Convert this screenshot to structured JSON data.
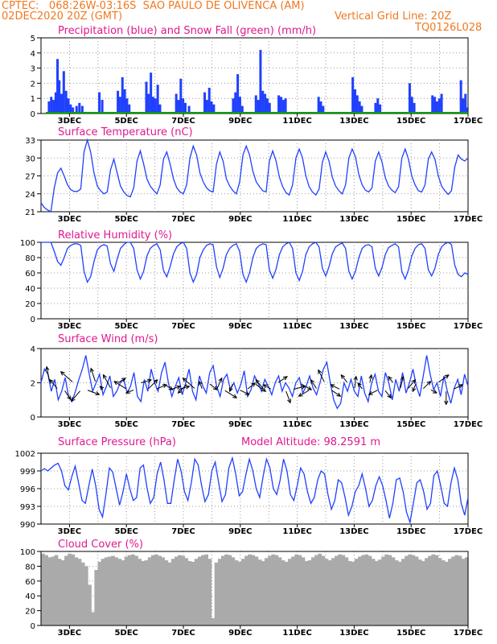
{
  "header": {
    "line1_left": "CPTEC:   068:26W-03:16S  SAO PAULO DE OLIVENCA (AM)",
    "line2_left": "02DEC2020 20Z (GMT)",
    "line2_right": "Vertical Grid Line: 20Z",
    "line3_right": "TQ0126L028"
  },
  "colors": {
    "header": "#f07820",
    "panel_title": "#e01890",
    "precip": "#2040ff",
    "snow": "#00a000",
    "line": "#2040ff",
    "cloud": "#aaaaaa",
    "grid": "#999999",
    "arrow": "#000000"
  },
  "chart_data": [
    {
      "type": "bar",
      "title": "Precipitation (blue) and Snow Fall (green) (mm/h)",
      "ylim": [
        0,
        5
      ],
      "yticks": [
        "0",
        "1",
        "2",
        "3",
        "4",
        "5"
      ],
      "xticks": [
        "3DEC",
        "5DEC",
        "7DEC",
        "9DEC",
        "11DEC",
        "13DEC",
        "15DEC",
        "17DEC"
      ],
      "x_start": 0.167,
      "x_end": 15.0,
      "series": [
        {
          "name": "Precipitation",
          "color": "#2040ff",
          "points": [
            [
              0.28,
              0.8
            ],
            [
              0.36,
              1.1
            ],
            [
              0.44,
              0.9
            ],
            [
              0.52,
              1.4
            ],
            [
              0.58,
              3.6
            ],
            [
              0.64,
              2.2
            ],
            [
              0.72,
              1.3
            ],
            [
              0.8,
              2.8
            ],
            [
              0.88,
              1.5
            ],
            [
              0.96,
              1.0
            ],
            [
              1.04,
              0.6
            ],
            [
              1.12,
              0.4
            ],
            [
              1.25,
              0.5
            ],
            [
              1.35,
              0.7
            ],
            [
              1.45,
              0.5
            ],
            [
              2.05,
              1.4
            ],
            [
              2.15,
              0.9
            ],
            [
              2.7,
              1.5
            ],
            [
              2.78,
              1.1
            ],
            [
              2.86,
              2.4
            ],
            [
              2.94,
              1.6
            ],
            [
              3.02,
              1.0
            ],
            [
              3.1,
              0.6
            ],
            [
              3.7,
              2.1
            ],
            [
              3.78,
              1.3
            ],
            [
              3.86,
              2.7
            ],
            [
              3.94,
              1.1
            ],
            [
              4.02,
              1.0
            ],
            [
              4.1,
              1.9
            ],
            [
              4.18,
              0.6
            ],
            [
              4.75,
              1.3
            ],
            [
              4.83,
              0.9
            ],
            [
              4.91,
              2.3
            ],
            [
              4.99,
              1.0
            ],
            [
              5.07,
              0.7
            ],
            [
              5.2,
              0.5
            ],
            [
              5.75,
              1.4
            ],
            [
              5.83,
              0.9
            ],
            [
              5.91,
              1.7
            ],
            [
              5.99,
              0.8
            ],
            [
              6.07,
              0.6
            ],
            [
              6.75,
              1.0
            ],
            [
              6.83,
              1.4
            ],
            [
              6.91,
              2.6
            ],
            [
              6.99,
              1.1
            ],
            [
              7.07,
              0.5
            ],
            [
              7.55,
              1.2
            ],
            [
              7.63,
              0.9
            ],
            [
              7.71,
              4.2
            ],
            [
              7.79,
              1.5
            ],
            [
              7.87,
              1.3
            ],
            [
              7.95,
              1.0
            ],
            [
              8.03,
              0.7
            ],
            [
              8.35,
              1.2
            ],
            [
              8.43,
              1.1
            ],
            [
              8.51,
              0.9
            ],
            [
              8.59,
              1.0
            ],
            [
              9.75,
              1.1
            ],
            [
              9.83,
              0.8
            ],
            [
              9.91,
              0.5
            ],
            [
              10.95,
              2.4
            ],
            [
              11.03,
              1.6
            ],
            [
              11.11,
              1.2
            ],
            [
              11.19,
              0.8
            ],
            [
              11.27,
              0.5
            ],
            [
              11.75,
              0.7
            ],
            [
              11.83,
              1.0
            ],
            [
              11.91,
              0.6
            ],
            [
              12.95,
              2.0
            ],
            [
              13.03,
              1.1
            ],
            [
              13.11,
              0.7
            ],
            [
              13.75,
              1.2
            ],
            [
              13.83,
              1.1
            ],
            [
              13.91,
              0.8
            ],
            [
              13.99,
              1.0
            ],
            [
              14.07,
              1.3
            ],
            [
              14.75,
              2.2
            ],
            [
              14.83,
              1.0
            ],
            [
              14.91,
              1.3
            ],
            [
              14.95,
              0.4
            ]
          ]
        },
        {
          "name": "Snow Fall",
          "color": "#00a000",
          "values": [
            0
          ]
        }
      ]
    },
    {
      "type": "line",
      "title": "Surface Temperature (nC)",
      "ylim": [
        21,
        33
      ],
      "yticks": [
        "21",
        "24",
        "27",
        "30",
        "33"
      ],
      "xticks": [
        "3DEC",
        "5DEC",
        "7DEC",
        "9DEC",
        "11DEC",
        "13DEC",
        "15DEC",
        "17DEC"
      ],
      "x_start": 0.0,
      "x_end": 15.0,
      "y": [
        22.5,
        21.7,
        21.3,
        21.0,
        25.0,
        27.5,
        28.3,
        27.0,
        25.5,
        24.7,
        24.4,
        24.4,
        24.8,
        31.0,
        33.0,
        31.0,
        27.5,
        25.3,
        24.5,
        24.0,
        24.3,
        28.0,
        29.8,
        27.5,
        25.3,
        24.3,
        23.7,
        23.5,
        25.0,
        29.5,
        31.2,
        29.0,
        26.5,
        25.3,
        24.6,
        24.0,
        25.5,
        29.8,
        31.0,
        29.0,
        26.5,
        25.0,
        24.3,
        24.0,
        25.5,
        30.0,
        32.0,
        30.5,
        27.5,
        26.0,
        25.0,
        24.5,
        24.3,
        29.0,
        31.0,
        29.5,
        26.5,
        25.3,
        24.5,
        24.0,
        26.0,
        30.5,
        32.0,
        30.5,
        27.8,
        26.0,
        25.2,
        24.5,
        24.3,
        29.5,
        31.2,
        29.5,
        26.8,
        25.2,
        24.2,
        23.8,
        25.5,
        30.0,
        31.5,
        30.0,
        27.0,
        25.2,
        24.3,
        23.8,
        24.8,
        29.3,
        31.0,
        29.5,
        26.8,
        25.3,
        24.5,
        24.0,
        25.5,
        30.0,
        31.5,
        30.2,
        27.2,
        25.5,
        24.6,
        24.3,
        25.0,
        29.5,
        31.0,
        29.3,
        26.7,
        25.3,
        24.6,
        24.2,
        25.2,
        30.0,
        31.5,
        29.8,
        27.0,
        25.5,
        24.5,
        24.3,
        25.5,
        29.8,
        31.0,
        29.8,
        27.0,
        25.3,
        24.5,
        23.9,
        24.5,
        28.5,
        30.5,
        29.8,
        29.5,
        30.0
      ]
    },
    {
      "type": "line",
      "title": "Relative Humidity (%)",
      "ylim": [
        0,
        100
      ],
      "yticks": [
        "0",
        "20",
        "40",
        "60",
        "80",
        "100"
      ],
      "xticks": [
        "3DEC",
        "5DEC",
        "7DEC",
        "9DEC",
        "11DEC",
        "13DEC",
        "15DEC",
        "17DEC"
      ],
      "x_start": 0.0,
      "x_end": 15.0,
      "y": [
        100,
        100,
        100,
        100,
        88,
        75,
        70,
        80,
        92,
        96,
        98,
        98,
        96,
        62,
        48,
        55,
        75,
        90,
        95,
        97,
        95,
        72,
        62,
        78,
        92,
        97,
        100,
        100,
        92,
        64,
        52,
        62,
        82,
        92,
        96,
        98,
        90,
        63,
        55,
        68,
        85,
        94,
        98,
        100,
        92,
        60,
        48,
        58,
        80,
        90,
        96,
        98,
        97,
        68,
        54,
        66,
        84,
        92,
        96,
        98,
        88,
        58,
        48,
        60,
        80,
        92,
        96,
        98,
        97,
        64,
        53,
        65,
        84,
        94,
        98,
        100,
        92,
        60,
        50,
        62,
        84,
        94,
        98,
        100,
        94,
        66,
        56,
        68,
        85,
        94,
        97,
        99,
        92,
        62,
        52,
        62,
        80,
        92,
        96,
        97,
        94,
        66,
        56,
        67,
        84,
        93,
        96,
        98,
        94,
        62,
        52,
        64,
        82,
        92,
        97,
        98,
        92,
        64,
        56,
        66,
        84,
        94,
        98,
        100,
        97,
        70,
        58,
        55,
        60,
        58
      ]
    },
    {
      "type": "line",
      "title": "Surface Wind (m/s)",
      "ylim": [
        0,
        4
      ],
      "yticks": [
        "0",
        "2",
        "4"
      ],
      "xticks": [
        "3DEC",
        "5DEC",
        "7DEC",
        "9DEC",
        "11DEC",
        "13DEC",
        "15DEC",
        "17DEC"
      ],
      "x_start": 0.0,
      "x_end": 15.0,
      "y": [
        2.0,
        2.8,
        2.5,
        1.5,
        2.2,
        1.0,
        1.5,
        2.3,
        1.2,
        0.9,
        1.5,
        2.2,
        2.8,
        3.6,
        2.5,
        1.5,
        2.0,
        2.5,
        1.3,
        1.8,
        2.4,
        1.2,
        1.5,
        2.0,
        2.2,
        1.4,
        1.8,
        2.6,
        1.2,
        0.9,
        2.2,
        1.5,
        2.8,
        2.0,
        1.5,
        2.6,
        3.2,
        2.0,
        1.2,
        1.8,
        2.3,
        1.3,
        2.0,
        2.8,
        1.5,
        1.0,
        2.4,
        1.8,
        1.4,
        2.6,
        3.0,
        1.8,
        1.2,
        2.2,
        2.5,
        1.6,
        2.0,
        1.4,
        1.9,
        2.7,
        1.2,
        1.6,
        2.4,
        2.0,
        1.5,
        2.2,
        1.8,
        1.3,
        2.0,
        2.4,
        1.5,
        2.0,
        1.7,
        1.2,
        2.0,
        2.3,
        1.4,
        1.8,
        2.4,
        1.7,
        1.3,
        2.0,
        2.8,
        3.2,
        2.0,
        1.0,
        0.5,
        0.8,
        2.0,
        1.5,
        2.2,
        1.5,
        1.2,
        2.4,
        1.4,
        0.9,
        2.0,
        2.5,
        1.5,
        1.2,
        2.6,
        2.0,
        1.0,
        2.2,
        1.5,
        2.6,
        1.4,
        2.0,
        2.8,
        1.8,
        1.2,
        2.4,
        3.6,
        2.5,
        1.6,
        2.0,
        1.2,
        2.4,
        1.5,
        0.8,
        1.7,
        2.2,
        1.3,
        2.5,
        1.8
      ]
    },
    {
      "type": "line",
      "title": "Surface Pressure (hPa)",
      "annotation": "Model Altitude: 98.2591  m",
      "ylim": [
        990,
        1002
      ],
      "yticks": [
        "990",
        "993",
        "996",
        "999",
        "1002"
      ],
      "xticks": [
        "3DEC",
        "5DEC",
        "7DEC",
        "9DEC",
        "11DEC",
        "13DEC",
        "15DEC",
        "17DEC"
      ],
      "x_start": 0.0,
      "x_end": 15.0,
      "y": [
        999.0,
        999.4,
        999.0,
        999.5,
        1000.0,
        1000.3,
        999.0,
        996.5,
        995.8,
        998.0,
        999.8,
        997.0,
        994.0,
        993.5,
        996.5,
        999.3,
        996.5,
        992.5,
        991.2,
        995.0,
        999.5,
        998.8,
        996.0,
        993.2,
        995.5,
        998.5,
        996.0,
        994.0,
        994.5,
        999.5,
        1000.0,
        996.2,
        993.5,
        994.5,
        998.5,
        1000.5,
        997.5,
        993.5,
        993.5,
        997.5,
        1001.0,
        999.0,
        995.5,
        994.0,
        997.0,
        1001.0,
        1000.0,
        996.5,
        993.8,
        995.0,
        999.0,
        1000.5,
        997.0,
        993.8,
        995.0,
        999.5,
        1001.2,
        998.5,
        994.8,
        995.5,
        998.5,
        1001.0,
        999.0,
        996.0,
        994.5,
        998.0,
        1001.0,
        999.5,
        996.0,
        995.0,
        997.5,
        1001.0,
        999.0,
        995.0,
        994.0,
        996.5,
        999.5,
        998.5,
        995.5,
        993.5,
        994.5,
        997.5,
        999.0,
        998.5,
        995.0,
        992.5,
        994.0,
        997.5,
        997.0,
        994.5,
        991.5,
        993.0,
        995.5,
        996.5,
        998.5,
        996.0,
        993.0,
        994.0,
        996.5,
        998.0,
        996.5,
        994.0,
        991.0,
        993.5,
        997.5,
        997.8,
        995.5,
        992.0,
        990.3,
        993.5,
        997.0,
        997.5,
        995.5,
        992.5,
        993.5,
        998.2,
        999.0,
        996.5,
        993.5,
        993.0,
        997.0,
        999.5,
        997.5,
        993.5,
        991.5,
        994.5
      ]
    },
    {
      "type": "bar",
      "title": "Cloud Cover (%)",
      "ylim": [
        0,
        100
      ],
      "yticks": [
        "0",
        "20",
        "40",
        "60",
        "80",
        "100"
      ],
      "xticks": [
        "3DEC",
        "5DEC",
        "7DEC",
        "9DEC",
        "11DEC",
        "13DEC",
        "15DEC",
        "17DEC"
      ],
      "x_start": 0.0,
      "x_end": 15.0,
      "values": [
        97,
        95,
        92,
        93,
        95,
        90,
        88,
        94,
        97,
        96,
        92,
        90,
        85,
        80,
        55,
        18,
        75,
        86,
        90,
        92,
        93,
        94,
        92,
        90,
        88,
        93,
        95,
        96,
        94,
        90,
        87,
        88,
        92,
        95,
        96,
        94,
        92,
        88,
        85,
        90,
        93,
        95,
        94,
        91,
        87,
        86,
        90,
        93,
        95,
        96,
        90,
        10,
        85,
        90,
        94,
        96,
        95,
        92,
        88,
        86,
        90,
        94,
        96,
        95,
        93,
        89,
        87,
        91,
        94,
        96,
        95,
        92,
        88,
        86,
        90,
        93,
        96,
        95,
        92,
        87,
        88,
        92,
        95,
        97,
        94,
        90,
        88,
        91,
        94,
        96,
        95,
        92,
        87,
        86,
        90,
        93,
        95,
        96,
        94,
        90,
        87,
        89,
        93,
        96,
        95,
        92,
        88,
        86,
        90,
        94,
        96,
        95,
        93,
        89,
        87,
        91,
        94,
        96,
        95,
        91,
        88,
        86,
        90,
        93,
        95,
        94,
        90,
        92
      ]
    }
  ],
  "wind_arrows": {
    "y_value": 1.6,
    "u": [
      -0.2,
      -0.5,
      0.4,
      -0.8,
      -0.6,
      0.8,
      -0.3,
      -0.2,
      -0.5,
      0.5,
      -0.8,
      -0.5,
      0.7,
      0.6,
      0.7,
      0.6,
      0.6,
      0.7,
      -0.6,
      -0.8,
      -0.2,
      0.5,
      0.3,
      0.8,
      -0.2,
      0.6,
      0.5,
      0.7,
      -0.5,
      -0.5,
      0.6,
      0.3,
      0.8,
      0.7,
      -0.7,
      -0.4,
      -0.4,
      0.6,
      -0.6,
      -0.4,
      0.1,
      -0.3,
      0.1,
      -0.6,
      0.4,
      -0.3,
      0.2,
      0.5,
      -0.2,
      0.5,
      0.4,
      0.7,
      0.0,
      0.6
    ],
    "v": [
      1.0,
      0.6,
      -0.6,
      0.7,
      -0.7,
      -0.3,
      0.9,
      0.2,
      0.9,
      0.3,
      0.5,
      -0.2,
      0.2,
      0.6,
      0.3,
      -0.4,
      0.2,
      0.2,
      -0.6,
      0.7,
      0.5,
      -0.4,
      0.7,
      -0.5,
      -0.5,
      -0.3,
      0.4,
      -0.5,
      0.6,
      0.3,
      0.4,
      -0.8,
      0.2,
      -0.4,
      -0.4,
      0.6,
      0.8,
      -0.4,
      0.3,
      0.5,
      0.8,
      0.4,
      0.5,
      -0.3,
      -0.5,
      0.4,
      0.8,
      0.6,
      -0.5,
      0.5,
      -0.2,
      0.5,
      -0.9,
      0.3
    ]
  }
}
